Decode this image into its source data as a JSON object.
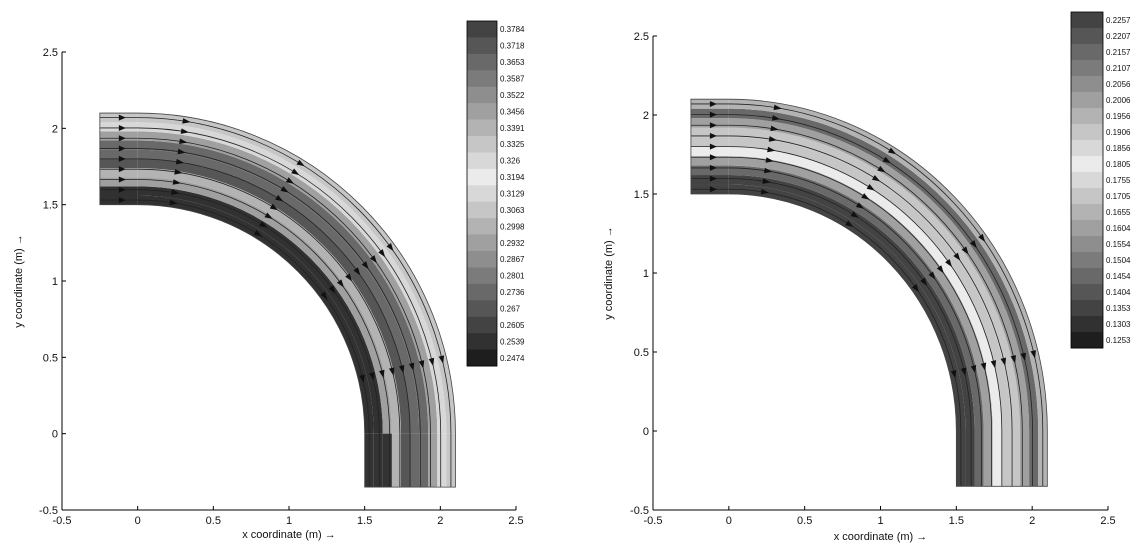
{
  "chart_data": [
    {
      "type": "heatmap",
      "subtype": "contour-with-streamlines",
      "domain": "quarter-annulus bend",
      "xlabel": "x coordinate (m) →",
      "ylabel": "y coordinate (m) →",
      "xlim": [
        -0.5,
        2.5
      ],
      "ylim": [
        -0.5,
        2.5
      ],
      "xticks": [
        "-0.5",
        "0",
        "0.5",
        "1",
        "1.5",
        "2",
        "2.5"
      ],
      "yticks": [
        "-0.5",
        "0",
        "0.5",
        "1",
        "1.5",
        "2",
        "2.5"
      ],
      "geometry": {
        "center": [
          0,
          0
        ],
        "r_inner": 1.5,
        "r_outer": 2.1,
        "inlet_x": -0.25,
        "outlet_y": -0.35
      },
      "colorbar": {
        "labels": [
          "0.3784",
          "0.3718",
          "0.3653",
          "0.3587",
          "0.3522",
          "0.3456",
          "0.3391",
          "0.3325",
          "0.326",
          "0.3194",
          "0.3129",
          "0.3063",
          "0.2998",
          "0.2932",
          "0.2867",
          "0.2801",
          "0.2736",
          "0.267",
          "0.2605",
          "0.2539",
          "0.2474"
        ],
        "min": 0.2474,
        "max": 0.3784
      },
      "grid": false,
      "legend": "colorbar-right"
    },
    {
      "type": "heatmap",
      "subtype": "contour-with-streamlines",
      "domain": "quarter-annulus bend",
      "xlabel": "x coordinate (m) →",
      "ylabel": "y coordinate (m) →",
      "xlim": [
        -0.5,
        2.5
      ],
      "ylim": [
        -0.5,
        2.5
      ],
      "xticks": [
        "-0.5",
        "0",
        "0.5",
        "1",
        "1.5",
        "2",
        "2.5"
      ],
      "yticks": [
        "-0.5",
        "0",
        "0.5",
        "1",
        "1.5",
        "2",
        "2.5"
      ],
      "geometry": {
        "center": [
          0,
          0
        ],
        "r_inner": 1.5,
        "r_outer": 2.1,
        "inlet_x": -0.25,
        "outlet_y": -0.35
      },
      "colorbar": {
        "labels": [
          "0.2257",
          "0.2207",
          "0.2157",
          "0.2107",
          "0.2056",
          "0.2006",
          "0.1956",
          "0.1906",
          "0.1856",
          "0.1805",
          "0.1755",
          "0.1705",
          "0.1655",
          "0.1604",
          "0.1554",
          "0.1504",
          "0.1454",
          "0.1404",
          "0.1353",
          "0.1303",
          "0.1253"
        ],
        "min": 0.1253,
        "max": 0.2257
      },
      "grid": false,
      "legend": "colorbar-right"
    }
  ]
}
